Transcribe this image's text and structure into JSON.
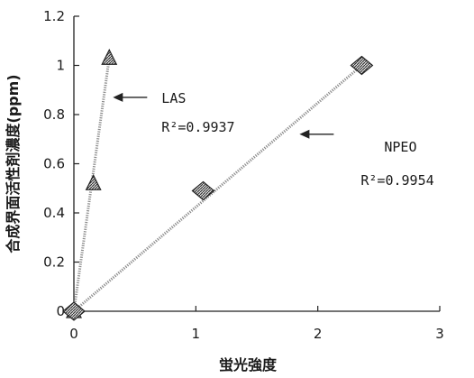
{
  "chart_data": {
    "type": "scatter",
    "title": "",
    "xlabel": "蛍光強度",
    "ylabel": "合成界面活性剤濃度(ppm)",
    "xlim": [
      0,
      3
    ],
    "ylim": [
      0,
      1.2
    ],
    "x_ticks": [
      "0",
      "1",
      "2",
      "3"
    ],
    "y_ticks": [
      "0",
      "0.2",
      "0.4",
      "0.6",
      "0.8",
      "1",
      "1.2"
    ],
    "grid": false,
    "legend": "none",
    "series": [
      {
        "name": "LAS",
        "marker": "triangle",
        "color": "#8a8a8a",
        "points": [
          [
            0,
            0
          ],
          [
            0.16,
            0.52
          ],
          [
            0.29,
            1.03
          ]
        ],
        "fit_line": [
          [
            0,
            0
          ],
          [
            0.29,
            1.03
          ]
        ]
      },
      {
        "name": "NPEO",
        "marker": "diamond",
        "color": "#8a8a8a",
        "points": [
          [
            0,
            0
          ],
          [
            1.06,
            0.49
          ],
          [
            2.36,
            1.0
          ]
        ],
        "fit_line": [
          [
            0,
            0
          ],
          [
            2.36,
            1.0
          ]
        ]
      }
    ],
    "annotations": [
      {
        "name": "LAS",
        "r2": "R²=0.9937",
        "target": [
          0.32,
          0.87
        ]
      },
      {
        "name": "NPEO",
        "r2": "R²=0.9954",
        "target": [
          1.85,
          0.72
        ]
      }
    ]
  }
}
